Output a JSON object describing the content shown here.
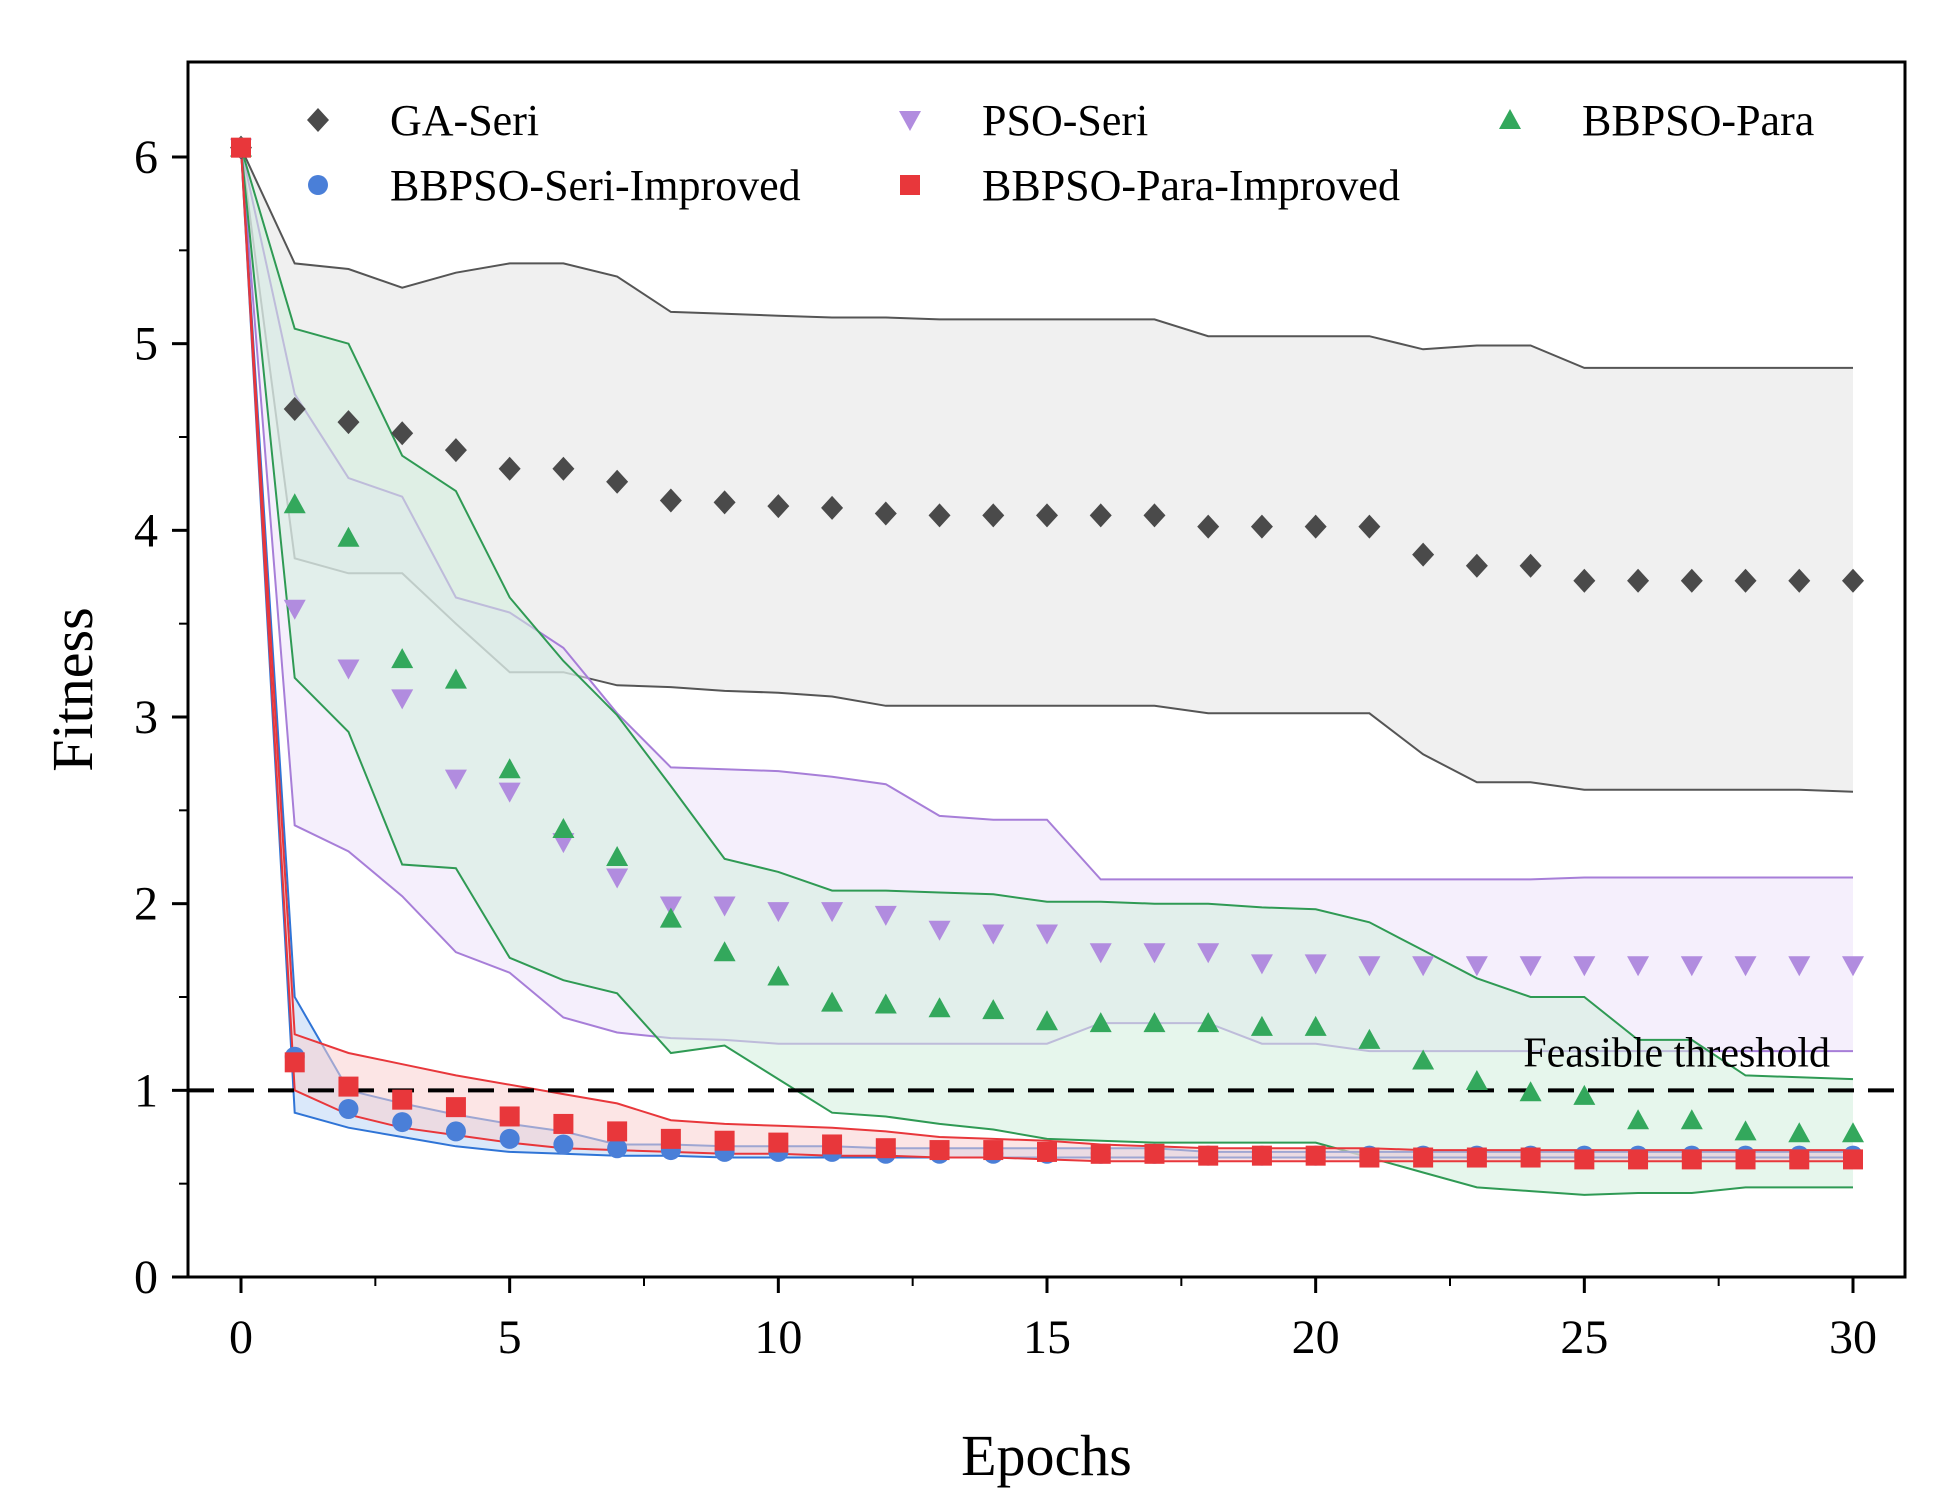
{
  "chart_data": {
    "type": "scatter",
    "title": "",
    "xlabel": "Epochs",
    "ylabel": "Fitness",
    "xlim": [
      -1,
      31
    ],
    "ylim": [
      0,
      6.5
    ],
    "xticks": [
      0,
      5,
      10,
      15,
      20,
      25,
      30
    ],
    "xtick_labels": [
      "0",
      "5",
      "10",
      "15",
      "20",
      "25",
      "30"
    ],
    "yticks": [
      0,
      1,
      2,
      3,
      4,
      5,
      6
    ],
    "ytick_labels": [
      "0",
      "1",
      "2",
      "3",
      "4",
      "5",
      "6"
    ],
    "grid": false,
    "legend_position": "top",
    "threshold": {
      "y": 1,
      "label": "Feasible threshold",
      "style": "dashed",
      "color": "#000000"
    },
    "x": [
      0,
      1,
      2,
      3,
      4,
      5,
      6,
      7,
      8,
      9,
      10,
      11,
      12,
      13,
      14,
      15,
      16,
      17,
      18,
      19,
      20,
      21,
      22,
      23,
      24,
      25,
      26,
      27,
      28,
      29,
      30
    ],
    "series": [
      {
        "name": "GA-Seri",
        "marker": "diamond",
        "color": "#4a4a4a",
        "band_fill": "#e4e4e4",
        "band_stroke": "#555555",
        "values": [
          6.05,
          4.65,
          4.58,
          4.52,
          4.43,
          4.33,
          4.33,
          4.26,
          4.16,
          4.15,
          4.13,
          4.12,
          4.09,
          4.08,
          4.08,
          4.08,
          4.08,
          4.08,
          4.02,
          4.02,
          4.02,
          4.02,
          3.87,
          3.81,
          3.81,
          3.73,
          3.73,
          3.73,
          3.73,
          3.73,
          3.73
        ],
        "upper": [
          6.05,
          5.43,
          5.4,
          5.3,
          5.38,
          5.43,
          5.43,
          5.36,
          5.17,
          5.16,
          5.15,
          5.14,
          5.14,
          5.13,
          5.13,
          5.13,
          5.13,
          5.13,
          5.04,
          5.04,
          5.04,
          5.04,
          4.97,
          4.99,
          4.99,
          4.87,
          4.87,
          4.87,
          4.87,
          4.87,
          4.87
        ],
        "lower": [
          6.05,
          3.85,
          3.77,
          3.77,
          3.5,
          3.24,
          3.24,
          3.17,
          3.16,
          3.14,
          3.13,
          3.11,
          3.06,
          3.06,
          3.06,
          3.06,
          3.06,
          3.06,
          3.02,
          3.02,
          3.02,
          3.02,
          2.8,
          2.65,
          2.65,
          2.61,
          2.61,
          2.61,
          2.61,
          2.61,
          2.6
        ]
      },
      {
        "name": "PSO-Seri",
        "marker": "triangle-down",
        "color": "#b18cdf",
        "band_fill": "#ece2f9",
        "band_stroke": "#a77ed8",
        "values": [
          6.05,
          3.58,
          3.26,
          3.1,
          2.67,
          2.6,
          2.33,
          2.14,
          1.99,
          1.99,
          1.96,
          1.96,
          1.94,
          1.86,
          1.84,
          1.84,
          1.74,
          1.74,
          1.74,
          1.68,
          1.68,
          1.67,
          1.67,
          1.67,
          1.67,
          1.67,
          1.67,
          1.67,
          1.67,
          1.67,
          1.67
        ],
        "upper": [
          6.05,
          4.73,
          4.28,
          4.18,
          3.64,
          3.56,
          3.37,
          3.02,
          2.73,
          2.72,
          2.71,
          2.68,
          2.64,
          2.47,
          2.45,
          2.45,
          2.13,
          2.13,
          2.13,
          2.13,
          2.13,
          2.13,
          2.13,
          2.13,
          2.13,
          2.14,
          2.14,
          2.14,
          2.14,
          2.14,
          2.14
        ],
        "lower": [
          6.05,
          2.42,
          2.28,
          2.04,
          1.74,
          1.63,
          1.39,
          1.31,
          1.28,
          1.27,
          1.25,
          1.25,
          1.25,
          1.25,
          1.25,
          1.25,
          1.36,
          1.36,
          1.36,
          1.25,
          1.25,
          1.21,
          1.21,
          1.21,
          1.21,
          1.21,
          1.21,
          1.21,
          1.21,
          1.21,
          1.21
        ]
      },
      {
        "name": "BBPSO-Para",
        "marker": "triangle-up",
        "color": "#33a85c",
        "band_fill": "#d2eedc",
        "band_stroke": "#2f9a54",
        "values": [
          6.05,
          4.14,
          3.96,
          3.31,
          3.2,
          2.72,
          2.4,
          2.25,
          1.92,
          1.74,
          1.61,
          1.47,
          1.46,
          1.44,
          1.43,
          1.37,
          1.36,
          1.36,
          1.36,
          1.34,
          1.34,
          1.27,
          1.16,
          1.05,
          0.99,
          0.97,
          0.84,
          0.84,
          0.78,
          0.77,
          0.77
        ],
        "upper": [
          6.05,
          5.08,
          5.0,
          4.4,
          4.21,
          3.64,
          3.3,
          3.01,
          2.63,
          2.24,
          2.17,
          2.07,
          2.07,
          2.06,
          2.05,
          2.01,
          2.01,
          2.0,
          2.0,
          1.98,
          1.97,
          1.9,
          1.75,
          1.6,
          1.5,
          1.5,
          1.27,
          1.27,
          1.08,
          1.07,
          1.06
        ],
        "lower": [
          6.05,
          3.21,
          2.92,
          2.21,
          2.19,
          1.71,
          1.59,
          1.52,
          1.2,
          1.24,
          1.06,
          0.88,
          0.86,
          0.82,
          0.79,
          0.74,
          0.73,
          0.72,
          0.72,
          0.72,
          0.72,
          0.64,
          0.56,
          0.48,
          0.46,
          0.44,
          0.45,
          0.45,
          0.48,
          0.48,
          0.48
        ]
      },
      {
        "name": "BBPSO-Seri-Improved",
        "marker": "circle",
        "color": "#4a7fd8",
        "band_fill": "#bcd6f5",
        "band_stroke": "#2f74d6",
        "values": [
          6.05,
          1.18,
          0.9,
          0.83,
          0.78,
          0.74,
          0.71,
          0.69,
          0.68,
          0.67,
          0.67,
          0.67,
          0.66,
          0.66,
          0.66,
          0.66,
          0.66,
          0.66,
          0.65,
          0.65,
          0.65,
          0.65,
          0.65,
          0.65,
          0.65,
          0.65,
          0.65,
          0.65,
          0.65,
          0.65,
          0.65
        ],
        "upper": [
          6.05,
          1.5,
          1.0,
          0.93,
          0.87,
          0.82,
          0.78,
          0.71,
          0.71,
          0.7,
          0.7,
          0.7,
          0.69,
          0.69,
          0.69,
          0.69,
          0.69,
          0.69,
          0.67,
          0.67,
          0.67,
          0.67,
          0.67,
          0.67,
          0.67,
          0.67,
          0.67,
          0.67,
          0.67,
          0.67,
          0.67
        ],
        "lower": [
          6.05,
          0.88,
          0.8,
          0.75,
          0.7,
          0.67,
          0.66,
          0.65,
          0.65,
          0.64,
          0.64,
          0.64,
          0.64,
          0.64,
          0.64,
          0.64,
          0.64,
          0.64,
          0.64,
          0.64,
          0.64,
          0.64,
          0.64,
          0.64,
          0.64,
          0.64,
          0.64,
          0.64,
          0.64,
          0.64,
          0.64
        ]
      },
      {
        "name": "BBPSO-Para-Improved",
        "marker": "square",
        "color": "#e8373b",
        "band_fill": "#f9d0cf",
        "band_stroke": "#e8373b",
        "values": [
          6.05,
          1.15,
          1.02,
          0.95,
          0.91,
          0.86,
          0.82,
          0.78,
          0.74,
          0.73,
          0.72,
          0.71,
          0.69,
          0.68,
          0.68,
          0.67,
          0.66,
          0.66,
          0.65,
          0.65,
          0.65,
          0.64,
          0.64,
          0.64,
          0.64,
          0.63,
          0.63,
          0.63,
          0.63,
          0.63,
          0.63
        ],
        "upper": [
          6.05,
          1.3,
          1.2,
          1.14,
          1.08,
          1.03,
          0.98,
          0.93,
          0.84,
          0.82,
          0.81,
          0.8,
          0.78,
          0.75,
          0.74,
          0.73,
          0.71,
          0.7,
          0.69,
          0.69,
          0.69,
          0.69,
          0.68,
          0.68,
          0.68,
          0.68,
          0.68,
          0.68,
          0.68,
          0.68,
          0.68
        ],
        "lower": [
          6.05,
          1.0,
          0.87,
          0.8,
          0.76,
          0.72,
          0.69,
          0.68,
          0.67,
          0.66,
          0.66,
          0.65,
          0.65,
          0.64,
          0.64,
          0.63,
          0.62,
          0.62,
          0.62,
          0.62,
          0.62,
          0.62,
          0.62,
          0.62,
          0.62,
          0.62,
          0.62,
          0.62,
          0.62,
          0.62,
          0.62
        ]
      }
    ],
    "legend_order": [
      "GA-Seri",
      "PSO-Seri",
      "BBPSO-Para",
      "BBPSO-Seri-Improved",
      "BBPSO-Para-Improved"
    ]
  }
}
